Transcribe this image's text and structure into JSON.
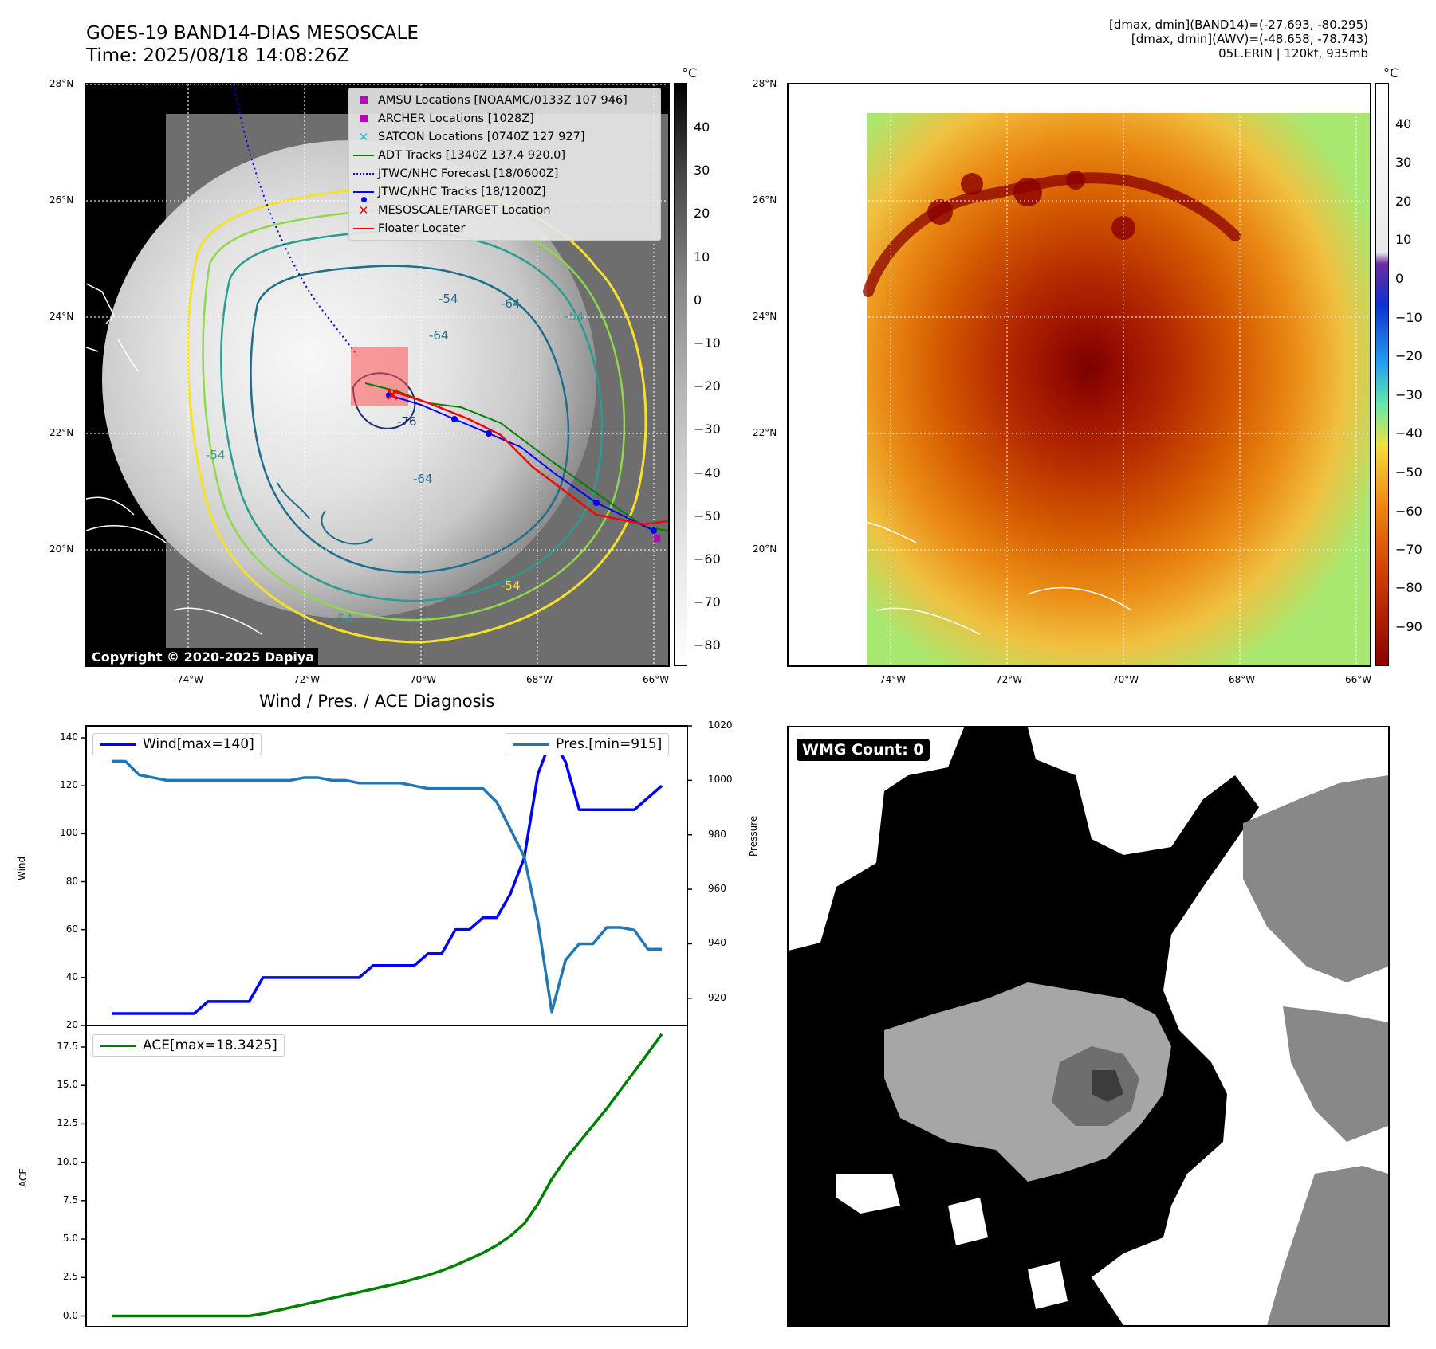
{
  "header": {
    "title_line1": "GOES-19 BAND14-DIAS MESOSCALE",
    "title_line2": "Time: 2025/08/18 14:08:26Z",
    "info_line1": "[dmax, dmin](BAND14)=(-27.693, -80.295)",
    "info_line2": "[dmax, dmin](AWV)=(-48.658, -78.743)",
    "info_line3": "05L.ERIN | 120kt, 935mb"
  },
  "map": {
    "lat_labels": [
      "28°N",
      "26°N",
      "24°N",
      "22°N",
      "20°N"
    ],
    "lon_labels": [
      "74°W",
      "72°W",
      "70°W",
      "68°W",
      "66°W"
    ],
    "contour_labels": [
      "-54",
      "-64",
      "-54",
      "-64",
      "-76",
      "-54",
      "-64",
      "-54",
      "-54"
    ],
    "copyright": "Copyright © 2020-2025 Dapiya",
    "colors": {
      "yellow": "#f5e12a",
      "lightgreen": "#8fd94a",
      "teal": "#2a9d8f",
      "darkteal": "#1f6f8b",
      "navy": "#1b2f6e"
    }
  },
  "legend": [
    {
      "icon": "square",
      "color": "#c000c0",
      "label": "AMSU Locations [NOAAMC/0133Z 107 946]"
    },
    {
      "icon": "square",
      "color": "#c000c0",
      "label": "ARCHER Locations [1028Z]"
    },
    {
      "icon": "x",
      "color": "#17becf",
      "label": "SATCON Locations [0740Z 127 927]"
    },
    {
      "icon": "line",
      "color": "#008000",
      "label": "ADT Tracks [1340Z 137.4 920.0]"
    },
    {
      "icon": "dotted",
      "color": "#0000ff",
      "label": "JTWC/NHC Forecast [18/0600Z]"
    },
    {
      "icon": "linedot",
      "color": "#0000ff",
      "label": "JTWC/NHC Tracks [18/1200Z]"
    },
    {
      "icon": "x",
      "color": "#ff0000",
      "label": "MESOSCALE/TARGET Location"
    },
    {
      "icon": "line",
      "color": "#ff0000",
      "label": "Floater Locater"
    }
  ],
  "colorbars": {
    "unit": "°C",
    "gray_ticks": [
      "40",
      "30",
      "20",
      "10",
      "0",
      "−10",
      "−20",
      "−30",
      "−40",
      "−50",
      "−60",
      "−70",
      "−80"
    ],
    "color_ticks": [
      "40",
      "30",
      "20",
      "10",
      "0",
      "−10",
      "−20",
      "−30",
      "−40",
      "−50",
      "−60",
      "−70",
      "−80",
      "−90"
    ]
  },
  "diagnosis": {
    "title": "Wind / Pres. / ACE Diagnosis",
    "wind_ticks": [
      "140",
      "120",
      "100",
      "80",
      "60",
      "40",
      "20"
    ],
    "pres_ticks": [
      "1020",
      "1000",
      "980",
      "960",
      "940",
      "920"
    ],
    "ace_ticks": [
      "17.5",
      "15.0",
      "12.5",
      "10.0",
      "7.5",
      "5.0",
      "2.5",
      "0.0"
    ],
    "wind_label": "Wind",
    "pres_label": "Pressure",
    "ace_label": "ACE",
    "wind_legend": "Wind[max=140]",
    "pres_legend": "Pres.[min=915]",
    "ace_legend": "ACE[max=18.3425]"
  },
  "wmg": {
    "label": "WMG Count: 0"
  },
  "chart_data": [
    {
      "type": "line",
      "title": "Wind / Pres. / ACE Diagnosis",
      "x": [
        0,
        1,
        2,
        3,
        4,
        5,
        6,
        7,
        8,
        9,
        10,
        11,
        12,
        13,
        14,
        15,
        16,
        17,
        18,
        19,
        20,
        21,
        22,
        23,
        24,
        25,
        26,
        27,
        28,
        29,
        30,
        31,
        32,
        33,
        34,
        35,
        36,
        37,
        38,
        39,
        40
      ],
      "series": [
        {
          "name": "Wind[max=140]",
          "axis": "left",
          "ylabel": "Wind",
          "ylim": [
            20,
            145
          ],
          "values": [
            25,
            25,
            25,
            25,
            25,
            25,
            25,
            30,
            30,
            30,
            30,
            40,
            40,
            40,
            40,
            40,
            40,
            40,
            40,
            45,
            45,
            45,
            45,
            50,
            50,
            60,
            60,
            65,
            65,
            75,
            90,
            125,
            140,
            130,
            110,
            110,
            110,
            110,
            110,
            115,
            120
          ]
        },
        {
          "name": "Pres.[min=915]",
          "axis": "right",
          "ylabel": "Pressure",
          "ylim": [
            910,
            1020
          ],
          "values": [
            1007,
            1007,
            1002,
            1001,
            1000,
            1000,
            1000,
            1000,
            1000,
            1000,
            1000,
            1000,
            1000,
            1000,
            1001,
            1001,
            1000,
            1000,
            999,
            999,
            999,
            999,
            998,
            997,
            997,
            997,
            997,
            997,
            992,
            982,
            972,
            948,
            915,
            934,
            940,
            940,
            946,
            946,
            945,
            938,
            938
          ]
        }
      ]
    },
    {
      "type": "line",
      "ylabel": "ACE",
      "ylim": [
        -0.7,
        18.9
      ],
      "x": [
        0,
        1,
        2,
        3,
        4,
        5,
        6,
        7,
        8,
        9,
        10,
        11,
        12,
        13,
        14,
        15,
        16,
        17,
        18,
        19,
        20,
        21,
        22,
        23,
        24,
        25,
        26,
        27,
        28,
        29,
        30,
        31,
        32,
        33,
        34,
        35,
        36,
        37,
        38,
        39,
        40
      ],
      "series": [
        {
          "name": "ACE[max=18.3425]",
          "values": [
            0,
            0,
            0,
            0,
            0,
            0,
            0,
            0,
            0,
            0,
            0,
            0.15,
            0.35,
            0.55,
            0.75,
            0.95,
            1.15,
            1.35,
            1.55,
            1.75,
            1.95,
            2.15,
            2.4,
            2.65,
            2.95,
            3.3,
            3.7,
            4.1,
            4.6,
            5.2,
            6.0,
            7.3,
            8.9,
            10.2,
            11.3,
            12.4,
            13.5,
            14.7,
            15.9,
            17.1,
            18.34
          ]
        }
      ]
    }
  ]
}
